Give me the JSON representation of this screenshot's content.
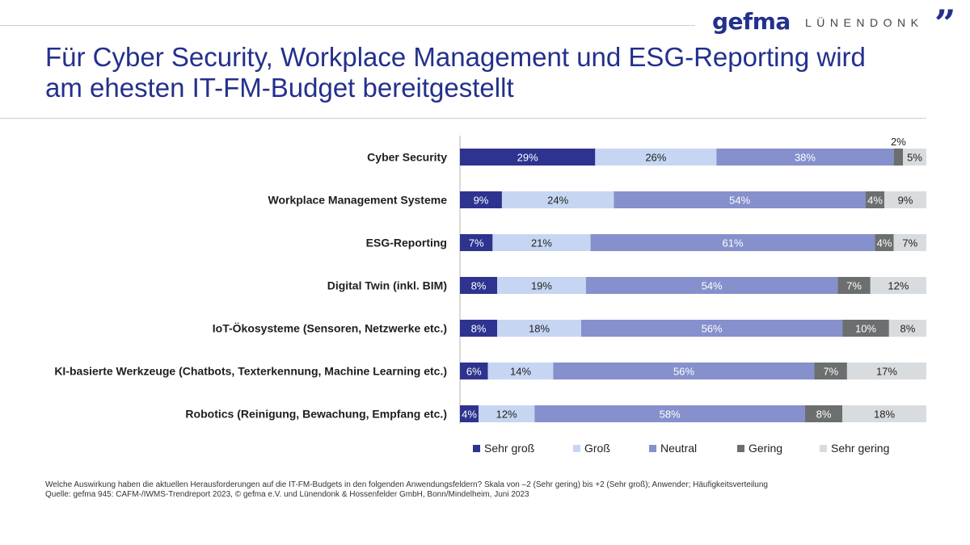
{
  "header": {
    "logo_gefma": "gefma",
    "logo_luenendonk": "LÜNENDONK",
    "logo_quote": "”"
  },
  "title": {
    "line1": "Für Cyber Security, Workplace Management und ESG-Reporting wird",
    "line2": "am ehesten IT-FM-Budget bereitgestellt"
  },
  "footnote": {
    "line1": "Welche Auswirkung haben die aktuellen Herausforderungen auf die IT-FM-Budgets in den folgenden Anwendungsfeldern? Skala von –2 (Sehr gering) bis +2 (Sehr groß); Anwender; Häufigkeitsverteilung",
    "line2": "Quelle: gefma 945: CAFM-/IWMS-Trendreport 2023, © gefma e.V. und Lünendonk & Hossenfelder GmbH, Bonn/Mindelheim, Juni 2023"
  },
  "colors": {
    "sehr_gross": "#2e3390",
    "gross": "#c6d6f2",
    "neutral": "#8690cc",
    "gering": "#6b6f6f",
    "sehr_gering": "#d8dcdf"
  },
  "chart_data": {
    "type": "bar",
    "orientation": "horizontal",
    "stacked": "100%",
    "categories": [
      "Cyber Security",
      "Workplace Management Systeme",
      "ESG-Reporting",
      "Digital Twin (inkl. BIM)",
      "IoT-Ökosysteme (Sensoren, Netzwerke etc.)",
      "KI-basierte Werkzeuge (Chatbots, Texterkennung, Machine Learning etc.)",
      "Robotics (Reinigung, Bewachung, Empfang etc.)"
    ],
    "series": [
      {
        "name": "Sehr groß",
        "values": [
          29,
          9,
          7,
          8,
          8,
          6,
          4
        ]
      },
      {
        "name": "Groß",
        "values": [
          26,
          24,
          21,
          19,
          18,
          14,
          12
        ]
      },
      {
        "name": "Neutral",
        "values": [
          38,
          54,
          61,
          54,
          56,
          56,
          58
        ]
      },
      {
        "name": "Gering",
        "values": [
          2,
          4,
          4,
          7,
          10,
          7,
          8
        ]
      },
      {
        "name": "Sehr gering",
        "values": [
          5,
          9,
          7,
          12,
          8,
          17,
          18
        ]
      }
    ],
    "unit": "%",
    "legend": "bottom",
    "grid": false
  }
}
